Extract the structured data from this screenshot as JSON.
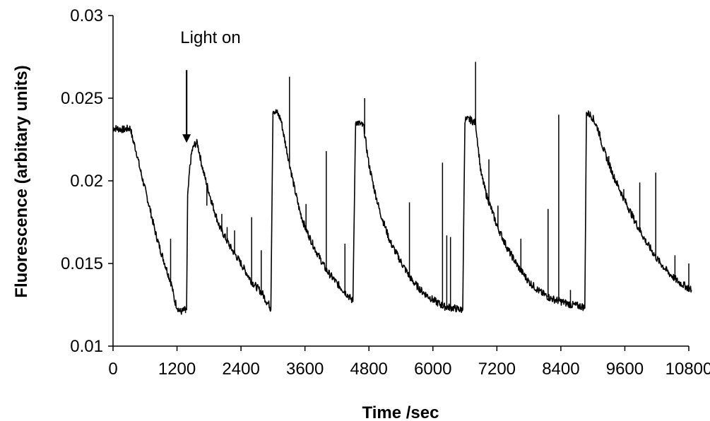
{
  "chart_data": {
    "type": "line",
    "title": "",
    "xlabel": "Time /sec",
    "ylabel": "Fluorescence (arbitary units)",
    "xlim": [
      0,
      10800
    ],
    "ylim": [
      0.01,
      0.03
    ],
    "x_ticks": [
      0,
      1200,
      2400,
      3600,
      4800,
      6000,
      7200,
      8400,
      9600,
      10800
    ],
    "y_ticks": [
      0.01,
      0.015,
      0.02,
      0.025,
      0.03
    ],
    "y_tick_labels": [
      "0.01",
      "0.015",
      "0.02",
      "0.025",
      "0.03"
    ],
    "grid": false,
    "legend": "none",
    "line_color": "#000000",
    "annotation": {
      "text": "Light on",
      "x": 1380,
      "y_tip": 0.0223,
      "y_tail": 0.0267
    },
    "series": [
      {
        "x": [
          0,
          200,
          330,
          360,
          400,
          450,
          500,
          600,
          700,
          800,
          900,
          1000,
          1100,
          1150,
          1200,
          1250,
          1300,
          1350,
          1380,
          1400,
          1440,
          1480,
          1530,
          1580,
          1620,
          1650,
          1700,
          1800,
          1900,
          2000,
          2200,
          2400,
          2600,
          2800,
          2880,
          2930,
          2960,
          3000,
          3080,
          3150,
          3200,
          3300,
          3400,
          3500,
          3600,
          3800,
          4000,
          4200,
          4400,
          4500,
          4550,
          4600,
          4700,
          4760,
          4800,
          4900,
          5000,
          5200,
          5400,
          5600,
          5800,
          6000,
          6200,
          6400,
          6520,
          6560,
          6600,
          6700,
          6800,
          6900,
          7000,
          7200,
          7400,
          7600,
          7800,
          8000,
          8200,
          8400,
          8600,
          8800,
          8850,
          8880,
          8950,
          9000,
          9100,
          9200,
          9400,
          9600,
          9800,
          10000,
          10200,
          10400,
          10600,
          10800,
          10850
        ],
        "y": [
          0.0232,
          0.0231,
          0.0232,
          0.0226,
          0.0222,
          0.0216,
          0.0208,
          0.0195,
          0.0182,
          0.0168,
          0.0157,
          0.0147,
          0.0137,
          0.0128,
          0.0124,
          0.0121,
          0.0121,
          0.0122,
          0.0122,
          0.019,
          0.0208,
          0.0218,
          0.0222,
          0.0223,
          0.0217,
          0.0212,
          0.0205,
          0.0193,
          0.0182,
          0.0172,
          0.016,
          0.015,
          0.0139,
          0.0132,
          0.0127,
          0.0125,
          0.0122,
          0.0243,
          0.0241,
          0.0237,
          0.0228,
          0.0212,
          0.0196,
          0.0182,
          0.0172,
          0.0158,
          0.0146,
          0.0138,
          0.0131,
          0.0127,
          0.0236,
          0.0235,
          0.0233,
          0.0219,
          0.021,
          0.0195,
          0.0182,
          0.0163,
          0.0151,
          0.014,
          0.0133,
          0.0128,
          0.0124,
          0.0123,
          0.0122,
          0.0122,
          0.0237,
          0.0237,
          0.0235,
          0.0205,
          0.0192,
          0.0173,
          0.0159,
          0.0148,
          0.0139,
          0.0133,
          0.0129,
          0.0127,
          0.0125,
          0.0124,
          0.0123,
          0.0241,
          0.024,
          0.0238,
          0.0231,
          0.0219,
          0.0202,
          0.0188,
          0.0175,
          0.0163,
          0.0153,
          0.0145,
          0.0139,
          0.0135,
          0.0134
        ]
      }
    ],
    "spikes": [
      {
        "x": 1080,
        "y": 0.0165
      },
      {
        "x": 1360,
        "y": 0.012
      },
      {
        "x": 1760,
        "y": 0.0185
      },
      {
        "x": 1860,
        "y": 0.0185
      },
      {
        "x": 2040,
        "y": 0.018
      },
      {
        "x": 2140,
        "y": 0.0172
      },
      {
        "x": 2280,
        "y": 0.017
      },
      {
        "x": 2600,
        "y": 0.0178
      },
      {
        "x": 2780,
        "y": 0.0158
      },
      {
        "x": 3310,
        "y": 0.0263
      },
      {
        "x": 3620,
        "y": 0.0186
      },
      {
        "x": 4000,
        "y": 0.0218
      },
      {
        "x": 4350,
        "y": 0.0162
      },
      {
        "x": 4720,
        "y": 0.025
      },
      {
        "x": 5560,
        "y": 0.0187
      },
      {
        "x": 6180,
        "y": 0.0211
      },
      {
        "x": 6260,
        "y": 0.0167
      },
      {
        "x": 6330,
        "y": 0.0166
      },
      {
        "x": 6800,
        "y": 0.0272
      },
      {
        "x": 7050,
        "y": 0.0213
      },
      {
        "x": 7220,
        "y": 0.0185
      },
      {
        "x": 7650,
        "y": 0.0165
      },
      {
        "x": 8160,
        "y": 0.0183
      },
      {
        "x": 8360,
        "y": 0.024
      },
      {
        "x": 8580,
        "y": 0.0134
      },
      {
        "x": 9300,
        "y": 0.0215
      },
      {
        "x": 9580,
        "y": 0.0195
      },
      {
        "x": 9880,
        "y": 0.0199
      },
      {
        "x": 10180,
        "y": 0.0205
      },
      {
        "x": 10540,
        "y": 0.0155
      },
      {
        "x": 10800,
        "y": 0.015
      }
    ]
  }
}
